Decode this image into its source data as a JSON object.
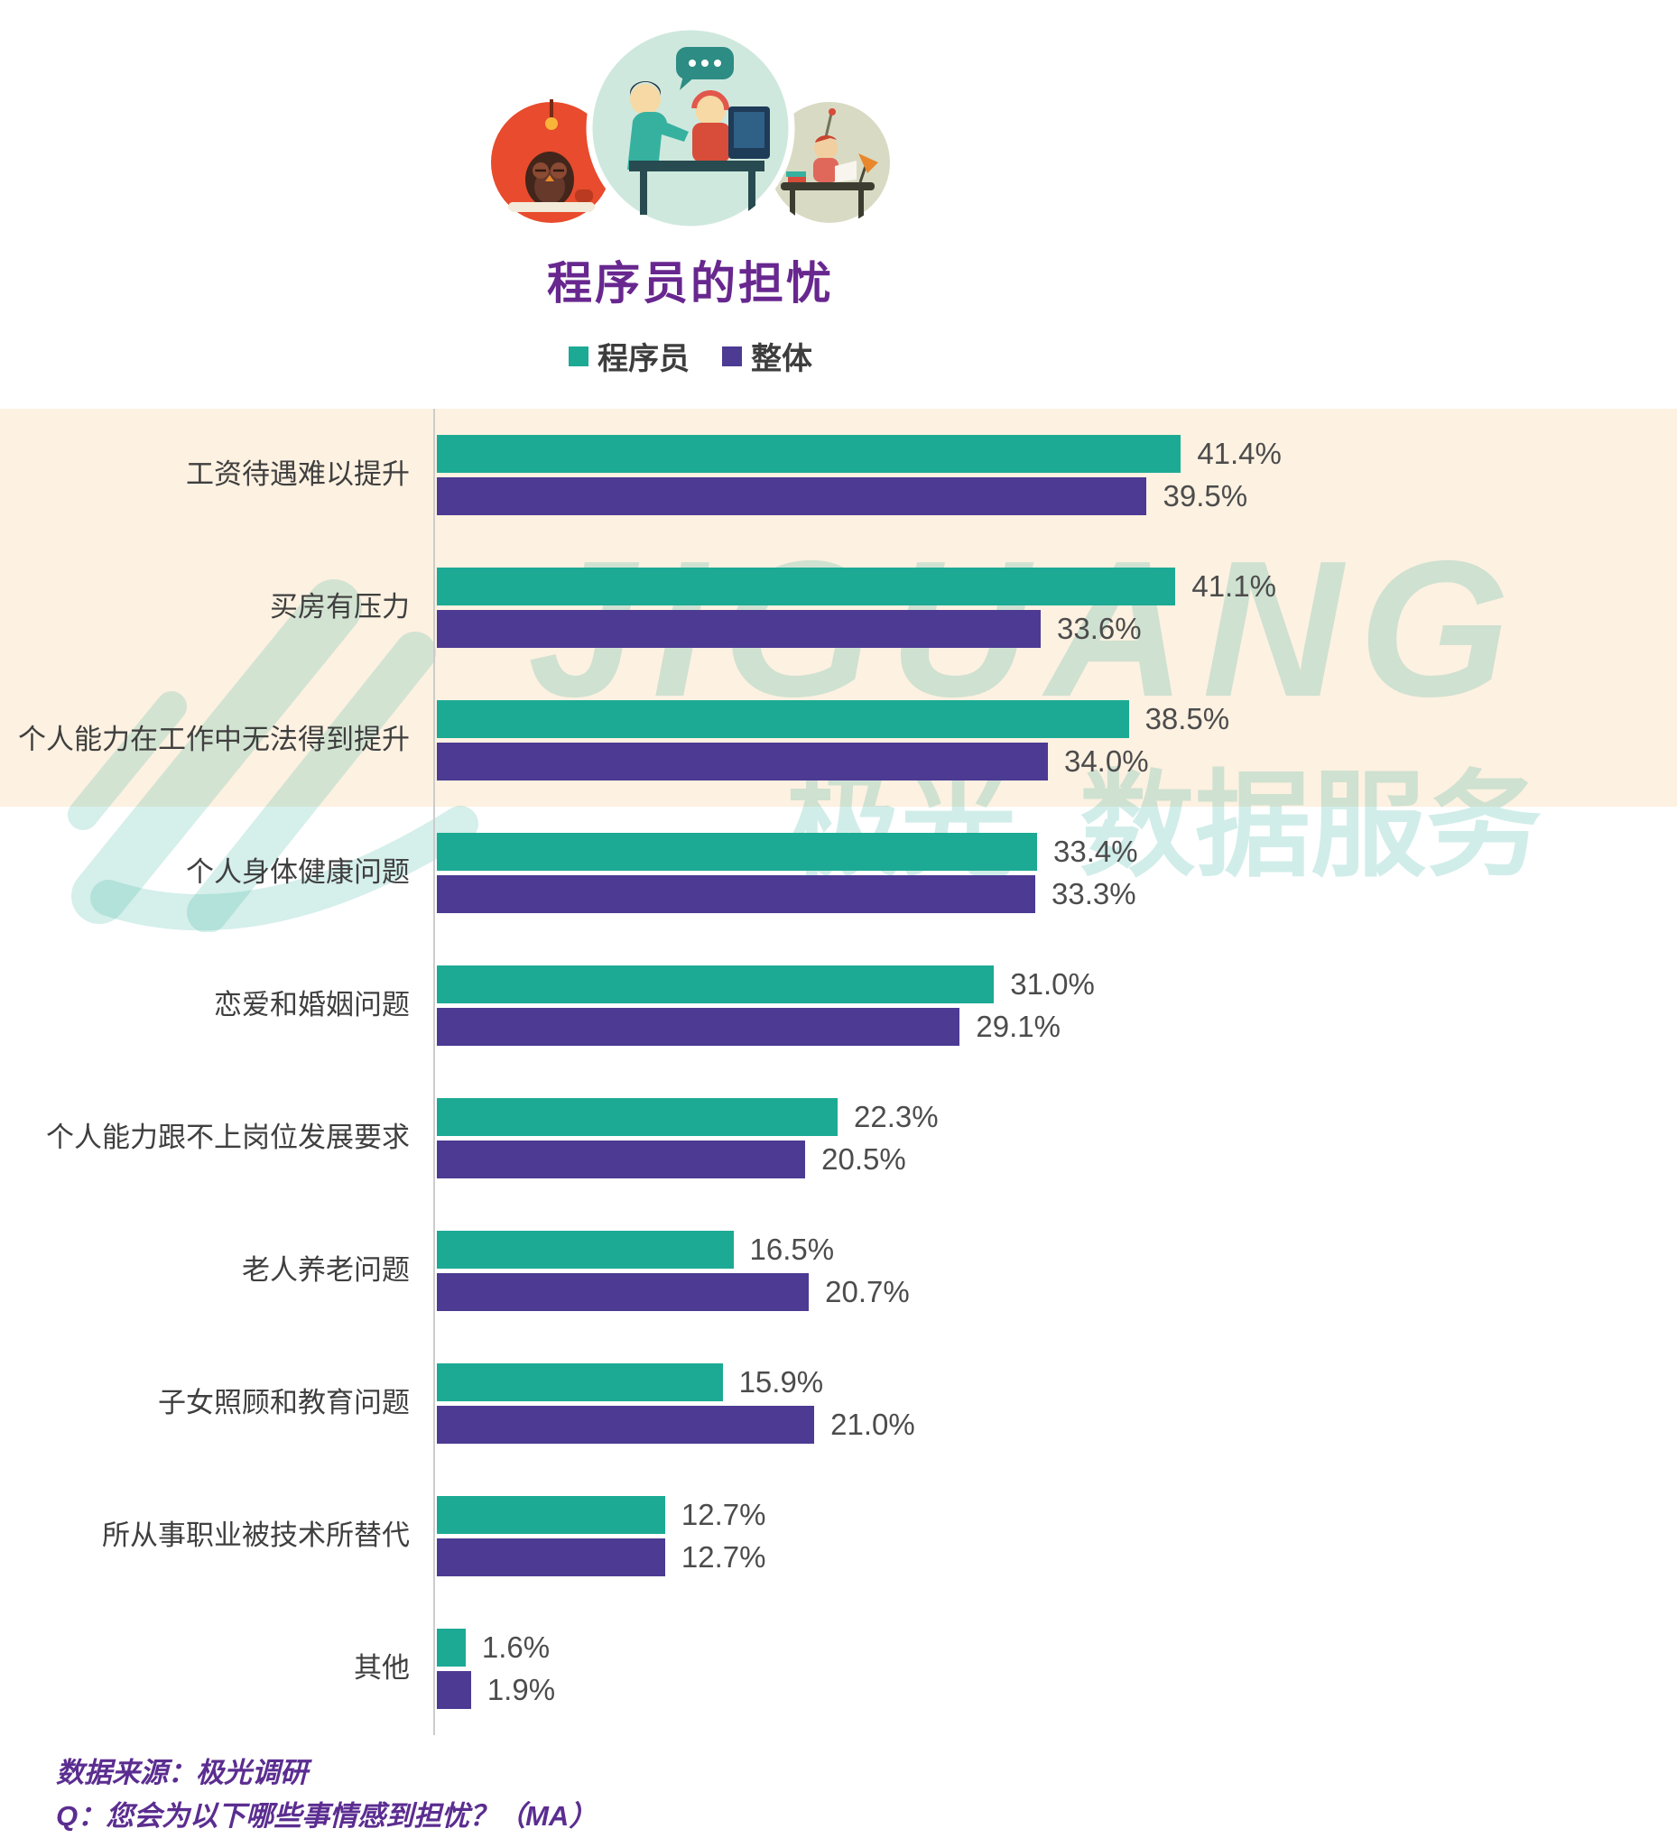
{
  "header": {
    "illustrations": [
      "owl-desk",
      "pair-programming",
      "workstation"
    ]
  },
  "chart_data": {
    "type": "bar",
    "orientation": "horizontal",
    "title": "程序员的担忧",
    "categories": [
      "工资待遇难以提升",
      "买房有压力",
      "个人能力在工作中无法得到提升",
      "个人身体健康问题",
      "恋爱和婚姻问题",
      "个人能力跟不上岗位发展要求",
      "老人养老问题",
      "子女照顾和教育问题",
      "所从事职业被技术所替代",
      "其他"
    ],
    "series": [
      {
        "name": "程序员",
        "color": "#1caa94",
        "values": [
          41.4,
          41.1,
          38.5,
          33.4,
          31.0,
          22.3,
          16.5,
          15.9,
          12.7,
          1.6
        ]
      },
      {
        "name": "整体",
        "color": "#4c3a93",
        "values": [
          39.5,
          33.6,
          34.0,
          33.3,
          29.1,
          20.5,
          20.7,
          21.0,
          12.7,
          1.9
        ]
      }
    ],
    "value_suffix": "%",
    "value_decimals": 1,
    "xlim": [
      0,
      45
    ],
    "grid": false,
    "legend_position": "top",
    "highlighted_rows": [
      0,
      1,
      2
    ],
    "highlight_color": "#fdf1e1"
  },
  "watermark": {
    "latin": "JIGUANG",
    "cjk_left": "极光",
    "cjk_right": "数据服务",
    "color": "#18a790"
  },
  "footer": {
    "source": "数据来源：极光调研",
    "question": "Q：您会为以下哪些事情感到担忧？（MA）"
  },
  "colors": {
    "title": "#68278f",
    "footer": "#5b2d90",
    "axis_line": "#cccccc",
    "value_label": "#4c4c4c",
    "category_label": "#3f3f3f"
  }
}
